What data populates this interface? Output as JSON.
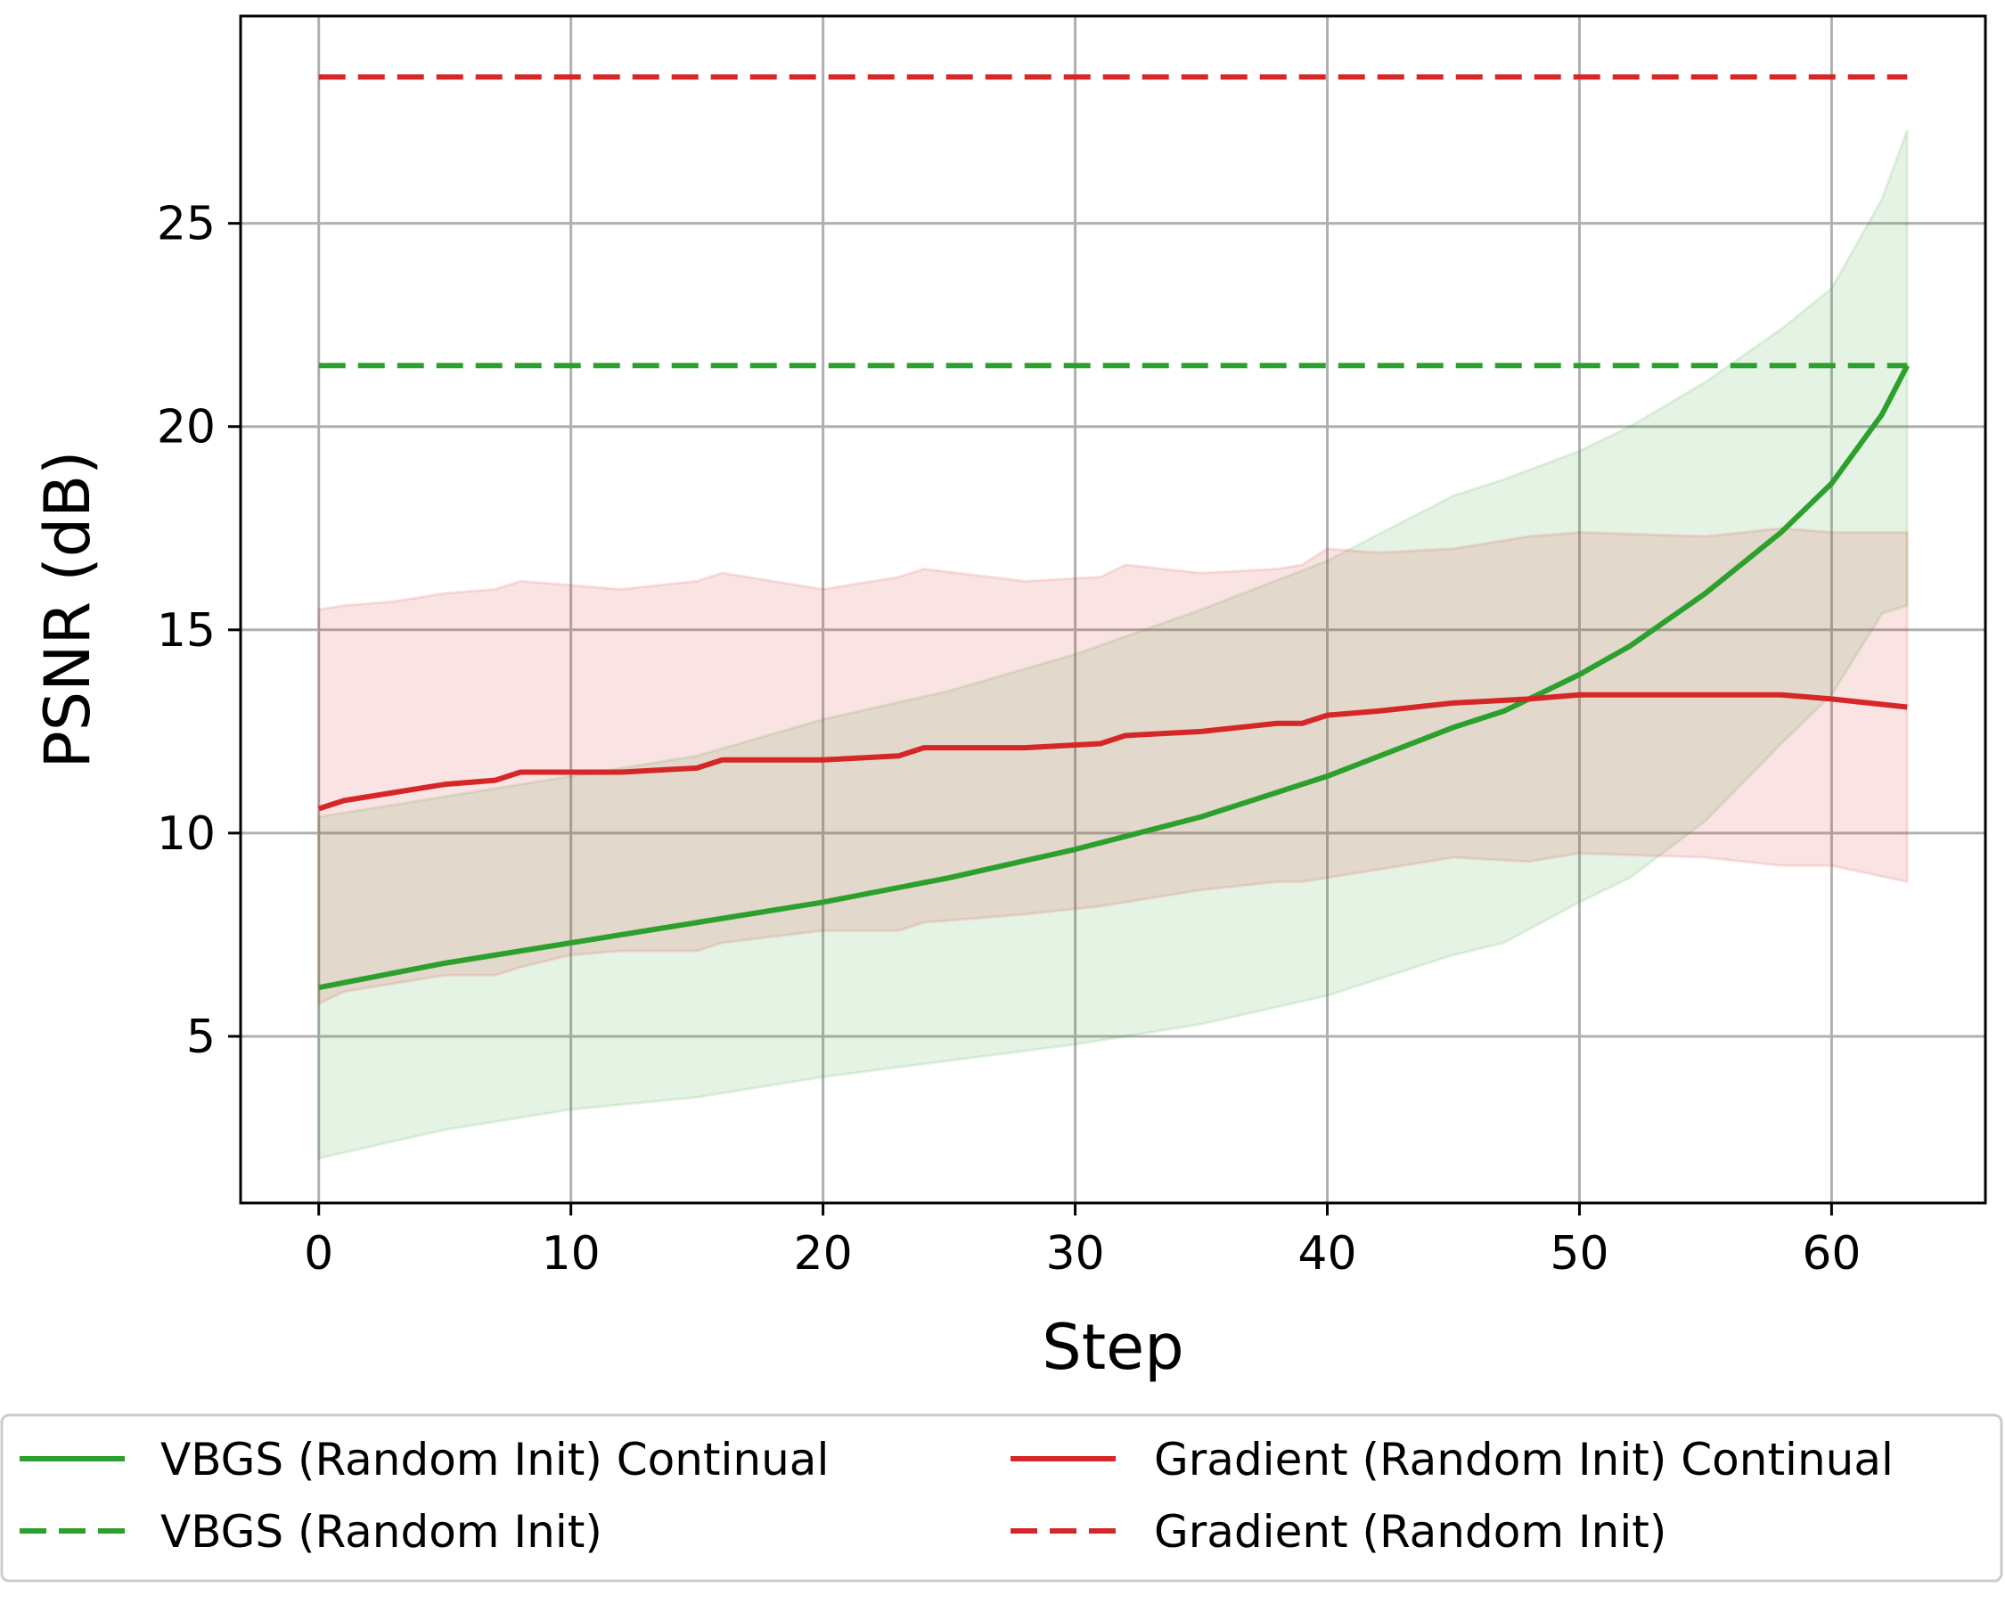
{
  "chart_data": {
    "type": "line",
    "xlabel": "Step",
    "ylabel": "PSNR (dB)",
    "xlim": [
      -3.1,
      66.1
    ],
    "ylim": [
      0.9,
      30.1
    ],
    "xticks": [
      0,
      10,
      20,
      30,
      40,
      50,
      60
    ],
    "yticks": [
      5,
      10,
      15,
      20,
      25
    ],
    "grid": true,
    "legend_placement": "bottom, outside plot, two columns",
    "colors": {
      "vbgs": "#2ca02c",
      "gradient": "#d62728",
      "vbgs_band": "#2ca02c",
      "gradient_band": "#d62728"
    },
    "series": [
      {
        "name": "VBGS (Random Init) Continual",
        "color": "#2ca02c",
        "style": "solid",
        "x": [
          0,
          5,
          10,
          15,
          20,
          25,
          30,
          35,
          40,
          45,
          47,
          50,
          52,
          55,
          58,
          60,
          62,
          63
        ],
        "y": [
          6.2,
          6.8,
          7.3,
          7.8,
          8.3,
          8.9,
          9.6,
          10.4,
          11.4,
          12.6,
          13.0,
          13.9,
          14.6,
          15.9,
          17.4,
          18.6,
          20.3,
          21.5
        ],
        "band_lower": [
          2.0,
          2.7,
          3.2,
          3.5,
          4.0,
          4.4,
          4.8,
          5.3,
          6.0,
          7.0,
          7.3,
          8.3,
          8.9,
          10.3,
          12.2,
          13.4,
          15.4,
          15.6
        ],
        "band_upper": [
          10.4,
          10.9,
          11.4,
          11.9,
          12.8,
          13.5,
          14.4,
          15.5,
          16.7,
          18.3,
          18.7,
          19.4,
          20.0,
          21.1,
          22.4,
          23.4,
          25.6,
          27.3
        ]
      },
      {
        "name": "VBGS (Random Init)",
        "color": "#2ca02c",
        "style": "dashed",
        "x": [
          0,
          63
        ],
        "y": [
          21.5,
          21.5
        ]
      },
      {
        "name": "Gradient (Random Init) Continual",
        "color": "#d62728",
        "style": "solid",
        "x": [
          0,
          1,
          3,
          5,
          7,
          8,
          10,
          12,
          15,
          16,
          20,
          23,
          24,
          28,
          31,
          32,
          35,
          38,
          39,
          40,
          42,
          45,
          48,
          50,
          55,
          58,
          60,
          63
        ],
        "y": [
          10.6,
          10.8,
          11.0,
          11.2,
          11.3,
          11.5,
          11.5,
          11.5,
          11.6,
          11.8,
          11.8,
          11.9,
          12.1,
          12.1,
          12.2,
          12.4,
          12.5,
          12.7,
          12.7,
          12.9,
          13.0,
          13.2,
          13.3,
          13.4,
          13.4,
          13.4,
          13.3,
          13.1
        ],
        "band_lower": [
          5.8,
          6.1,
          6.3,
          6.5,
          6.5,
          6.7,
          7.0,
          7.1,
          7.1,
          7.3,
          7.6,
          7.6,
          7.8,
          8.0,
          8.2,
          8.3,
          8.6,
          8.8,
          8.8,
          8.9,
          9.1,
          9.4,
          9.3,
          9.5,
          9.4,
          9.2,
          9.2,
          8.8
        ],
        "band_upper": [
          15.5,
          15.6,
          15.7,
          15.9,
          16.0,
          16.2,
          16.1,
          16.0,
          16.2,
          16.4,
          16.0,
          16.3,
          16.5,
          16.2,
          16.3,
          16.6,
          16.4,
          16.5,
          16.6,
          17.0,
          16.9,
          17.0,
          17.3,
          17.4,
          17.3,
          17.5,
          17.4,
          17.4
        ]
      },
      {
        "name": "Gradient (Random Init)",
        "color": "#d62728",
        "style": "dashed",
        "x": [
          0,
          63
        ],
        "y": [
          28.6,
          28.6
        ]
      }
    ]
  }
}
